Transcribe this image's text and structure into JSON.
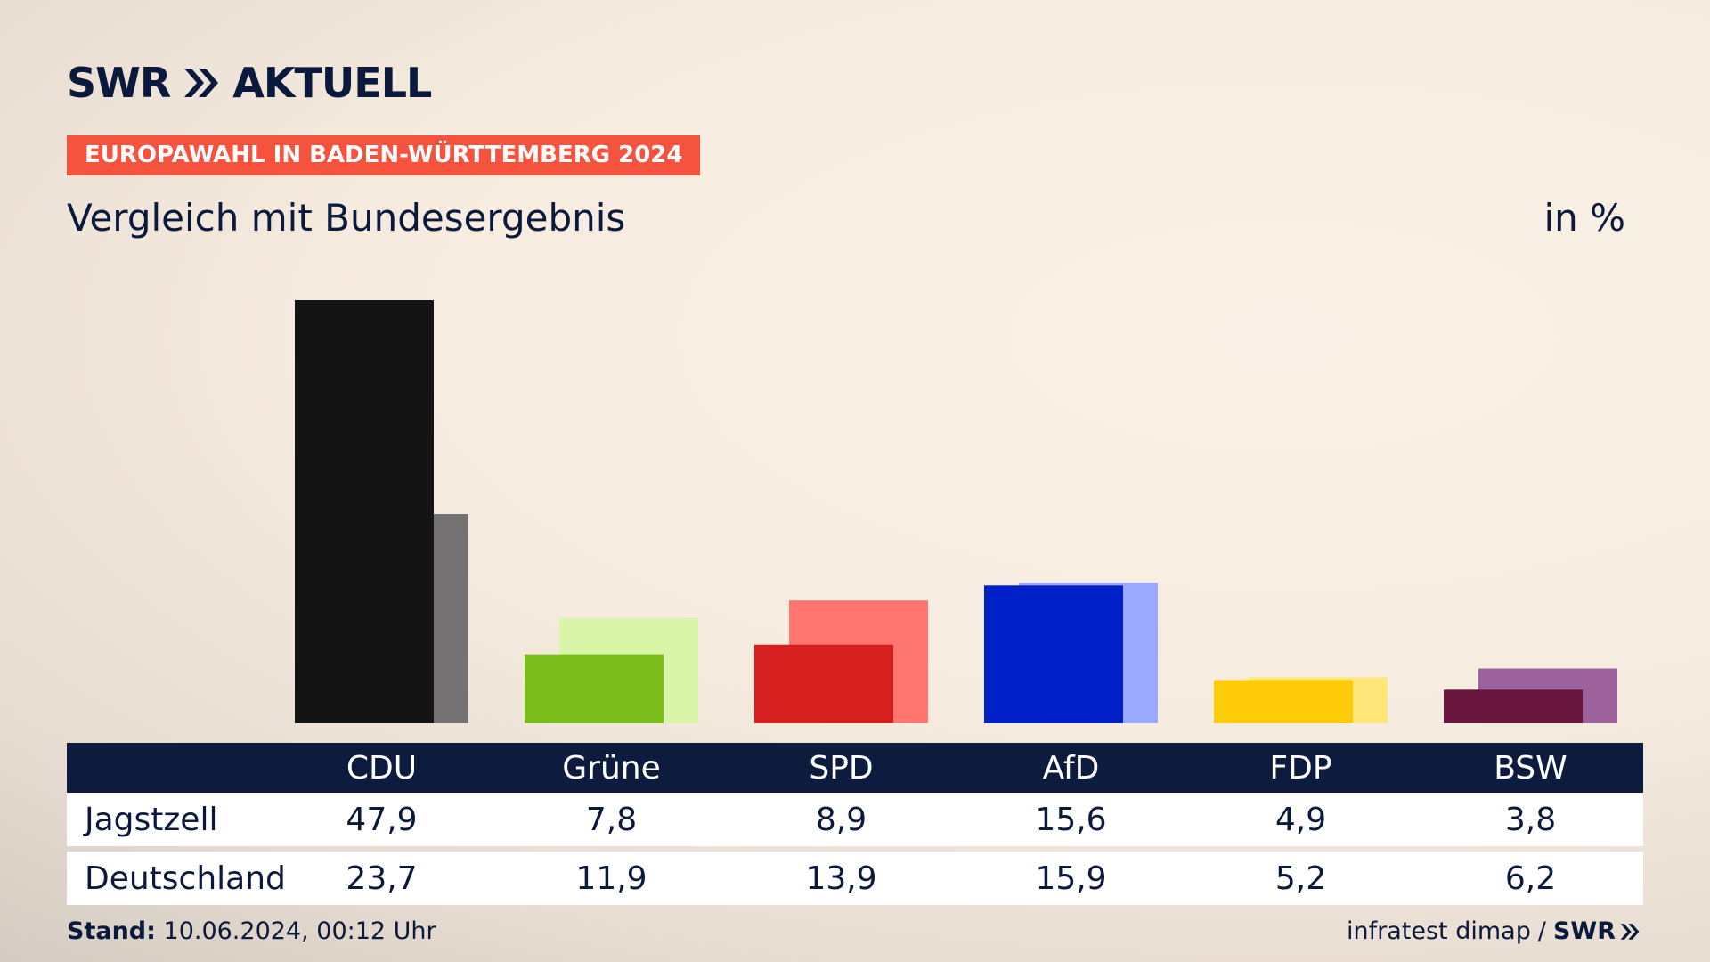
{
  "brand": {
    "name": "SWR",
    "product": "AKTUELL"
  },
  "kicker": "EUROPAWAHL IN BADEN-WÜRTTEMBERG 2024",
  "subtitle": "Vergleich mit Bundesergebnis",
  "unit": "in %",
  "table": {
    "row1_label": "Jagstzell",
    "row2_label": "Deutschland"
  },
  "footer": {
    "stand_label": "Stand:",
    "stand_value": "10.06.2024, 00:12 Uhr",
    "source": "infratest dimap",
    "separator": "/",
    "brand": "SWR"
  },
  "chart_data": {
    "type": "bar",
    "categories": [
      "CDU",
      "Grüne",
      "SPD",
      "AfD",
      "FDP",
      "BSW"
    ],
    "series": [
      {
        "name": "Jagstzell",
        "values": [
          47.9,
          7.8,
          8.9,
          15.6,
          4.9,
          3.8
        ],
        "labels": [
          "47,9",
          "7,8",
          "8,9",
          "15,6",
          "4,9",
          "3,8"
        ]
      },
      {
        "name": "Deutschland",
        "values": [
          23.7,
          11.9,
          13.9,
          15.9,
          5.2,
          6.2
        ],
        "labels": [
          "23,7",
          "11,9",
          "13,9",
          "15,9",
          "5,2",
          "6,2"
        ]
      }
    ],
    "colors_primary": [
      "#141414",
      "#7abd1b",
      "#d61f1f",
      "#0020c9",
      "#ffcc0a",
      "#6a173f"
    ],
    "colors_secondary": [
      "#747272",
      "#d8f5a8",
      "#ff7570",
      "#9aa8ff",
      "#ffe57a",
      "#9e629c"
    ],
    "ylim": [
      0,
      48
    ]
  }
}
